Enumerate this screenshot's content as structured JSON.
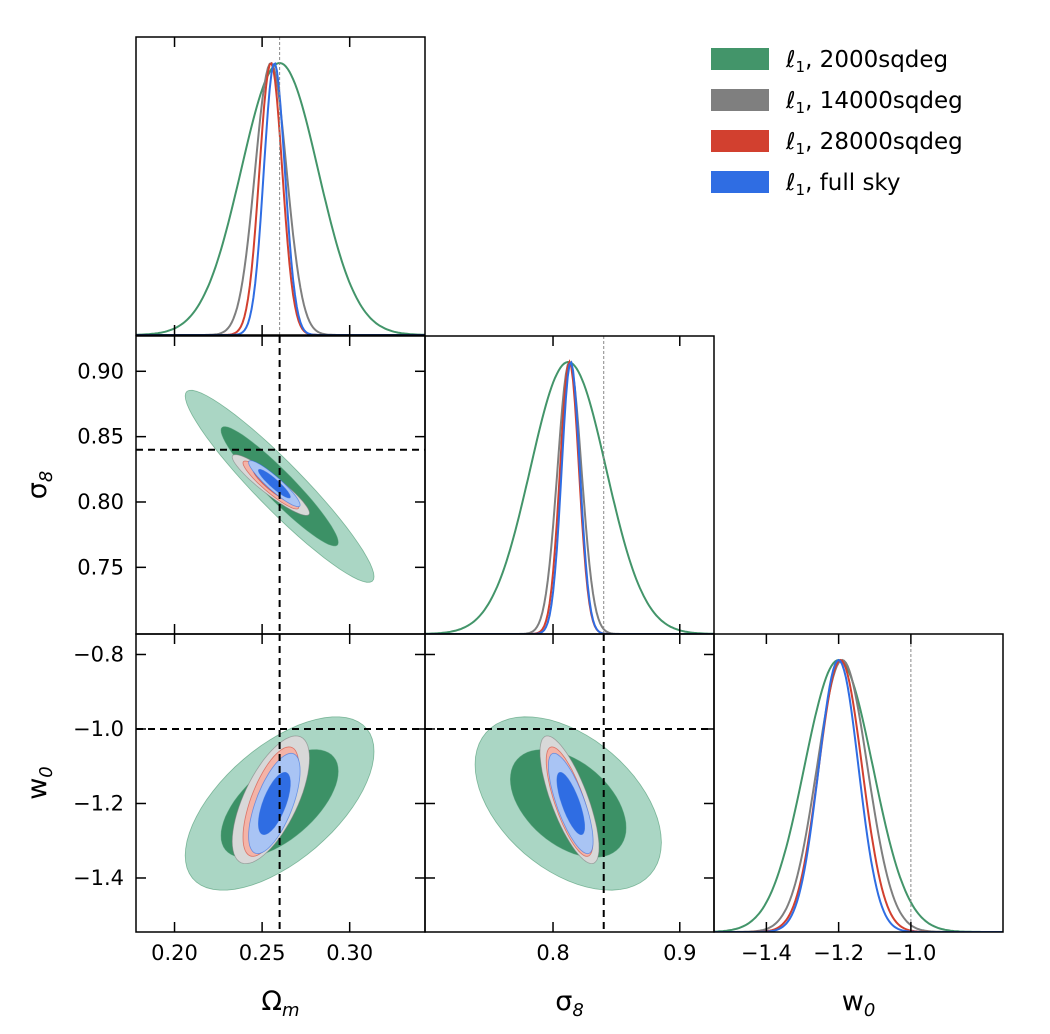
{
  "chart_data": {
    "type": "corner",
    "parameters": [
      {
        "key": "om",
        "label_base": "Ω",
        "label_sub": "m",
        "range": [
          0.178,
          0.343
        ],
        "ticks": [
          0.2,
          0.25,
          0.3
        ],
        "tick_labels": [
          "0.20",
          "0.25",
          "0.30"
        ],
        "fiducial": 0.26
      },
      {
        "key": "s8",
        "label_base": "σ",
        "label_sub": "8",
        "range": [
          0.699,
          0.927
        ],
        "ticks": [
          0.75,
          0.8,
          0.85,
          0.9
        ],
        "tick_labels": [
          "0.75",
          "0.80",
          "0.85",
          "0.90"
        ],
        "x_tick_labels": [
          "0.8",
          "0.9"
        ],
        "x_ticks": [
          0.8,
          0.9
        ],
        "fiducial": 0.84
      },
      {
        "key": "w0",
        "label_base": "w",
        "label_sub": "0",
        "range": [
          -1.545,
          -0.745
        ],
        "ticks": [
          -1.4,
          -1.2,
          -1.0,
          -0.8
        ],
        "tick_labels": [
          "−1.4",
          "−1.2",
          "−1.0",
          "−0.8"
        ],
        "x_ticks": [
          -1.4,
          -1.2,
          -1.0
        ],
        "x_tick_labels": [
          "−1.4",
          "−1.2",
          "−1.0"
        ],
        "fiducial": -1.0
      }
    ],
    "series": [
      {
        "name": "2000sqdeg",
        "legend_prefix": "ℓ",
        "legend_sub": "1",
        "legend_suffix": ", 2000sqdeg",
        "color": "#43956a",
        "fill_outer": "#a5d4c1",
        "fill_inner": "#3c9166",
        "mean": {
          "om": 0.26,
          "s8": 0.812,
          "w0": -1.2
        },
        "sigma": {
          "om": 0.022,
          "s8": 0.03,
          "w0": 0.095
        },
        "corr": {
          "om_s8": -0.94,
          "om_w0": 0.6,
          "s8_w0": -0.45
        }
      },
      {
        "name": "14000sqdeg",
        "legend_prefix": "ℓ",
        "legend_sub": "1",
        "legend_suffix": ", 14000sqdeg",
        "color": "#7f7f7f",
        "fill_outer": "#d8d8d8",
        "fill_inner": "#a5a5a5",
        "mean": {
          "om": 0.255,
          "s8": 0.813,
          "w0": -1.19
        },
        "sigma": {
          "om": 0.009,
          "s8": 0.0095,
          "w0": 0.07
        },
        "corr": {
          "om_s8": -0.92,
          "om_w0": 0.65,
          "s8_w0": -0.75
        }
      },
      {
        "name": "28000sqdeg",
        "legend_prefix": "ℓ",
        "legend_sub": "1",
        "legend_suffix": ", 28000sqdeg",
        "color": "#d2402f",
        "fill_outer": "#f4b3a7",
        "fill_inner": "#e07a6b",
        "mean": {
          "om": 0.255,
          "s8": 0.813,
          "w0": -1.195
        },
        "sigma": {
          "om": 0.0065,
          "s8": 0.0075,
          "w0": 0.06
        },
        "corr": {
          "om_s8": -0.92,
          "om_w0": 0.65,
          "s8_w0": -0.75
        }
      },
      {
        "name": "full sky",
        "legend_prefix": "ℓ",
        "legend_sub": "1",
        "legend_suffix": ", full sky",
        "color": "#2f6de3",
        "fill_outer": "#a9c4f4",
        "fill_inner": "#2f6de3",
        "mean": {
          "om": 0.257,
          "s8": 0.814,
          "w0": -1.2
        },
        "sigma": {
          "om": 0.006,
          "s8": 0.0072,
          "w0": 0.055
        },
        "corr": {
          "om_s8": -0.92,
          "om_w0": 0.65,
          "s8_w0": -0.75
        }
      }
    ],
    "legend_position": "top-right",
    "contour_levels": [
      "68%",
      "95%"
    ]
  }
}
